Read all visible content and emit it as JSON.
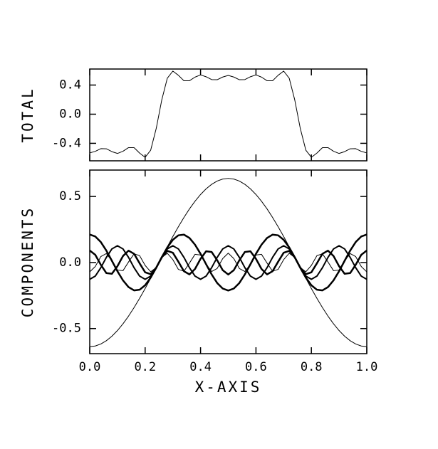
{
  "chart_data": [
    {
      "type": "line",
      "ylabel": "TOTAL",
      "x": [
        0,
        0.02,
        0.04,
        0.06,
        0.08,
        0.1,
        0.12,
        0.14,
        0.16,
        0.18,
        0.2,
        0.22,
        0.24,
        0.26,
        0.28,
        0.3,
        0.32,
        0.34,
        0.36,
        0.38,
        0.4,
        0.42,
        0.44,
        0.46,
        0.48,
        0.5,
        0.52,
        0.54,
        0.56,
        0.58,
        0.6,
        0.62,
        0.64,
        0.66,
        0.68,
        0.7,
        0.72,
        0.74,
        0.76,
        0.78,
        0.8,
        0.82,
        0.84,
        0.86,
        0.88,
        0.9,
        0.92,
        0.94,
        0.96,
        0.98,
        1.0
      ],
      "xlim": [
        0,
        1
      ],
      "xticks": [
        0,
        0.2,
        0.4,
        0.6,
        0.8,
        1
      ],
      "xticklabels": false,
      "ylim": [
        -0.64,
        0.62
      ],
      "yticks": [
        0.4,
        {
          "value": 0,
          "label": "0.0"
        },
        -0.4
      ],
      "series": [
        {
          "color": "#000000",
          "width": 1,
          "values": [
            -0.532,
            -0.51,
            -0.473,
            -0.475,
            -0.514,
            -0.539,
            -0.509,
            -0.459,
            -0.459,
            -0.534,
            -0.592,
            -0.494,
            -0.196,
            0.196,
            0.494,
            0.592,
            0.534,
            0.459,
            0.459,
            0.509,
            0.539,
            0.514,
            0.475,
            0.473,
            0.51,
            0.532,
            0.51,
            0.473,
            0.475,
            0.514,
            0.539,
            0.509,
            0.459,
            0.459,
            0.534,
            0.592,
            0.494,
            0.196,
            -0.196,
            -0.494,
            -0.592,
            -0.534,
            -0.459,
            -0.459,
            -0.509,
            -0.539,
            -0.514,
            -0.475,
            -0.473,
            -0.51,
            -0.532
          ]
        }
      ]
    },
    {
      "type": "line",
      "ylabel": "COMPONENTS",
      "xlabel": "X-AXIS",
      "x": [
        0,
        0.02,
        0.04,
        0.06,
        0.08,
        0.1,
        0.12,
        0.14,
        0.16,
        0.18,
        0.2,
        0.22,
        0.24,
        0.26,
        0.28,
        0.3,
        0.32,
        0.34,
        0.36,
        0.38,
        0.4,
        0.42,
        0.44,
        0.46,
        0.48,
        0.5,
        0.52,
        0.54,
        0.56,
        0.58,
        0.6,
        0.62,
        0.64,
        0.66,
        0.68,
        0.7,
        0.72,
        0.74,
        0.76,
        0.78,
        0.8,
        0.82,
        0.84,
        0.86,
        0.88,
        0.9,
        0.92,
        0.94,
        0.96,
        0.98,
        1.0
      ],
      "xlim": [
        0,
        1
      ],
      "xticks": [
        {
          "value": 0,
          "label": "0.0"
        },
        0.2,
        0.4,
        0.6,
        0.8,
        {
          "value": 1,
          "label": "1.0"
        }
      ],
      "xticklabels": true,
      "ylim": [
        -0.69,
        0.7
      ],
      "yticks": [
        0.5,
        {
          "value": 0,
          "label": "0.0"
        },
        -0.5
      ],
      "series": [
        {
          "color": "#000000",
          "width": 1,
          "values": [
            -0.637,
            -0.632,
            -0.617,
            -0.592,
            -0.558,
            -0.515,
            -0.464,
            -0.406,
            -0.341,
            -0.271,
            -0.197,
            -0.119,
            -0.04,
            0.04,
            0.119,
            0.197,
            0.271,
            0.341,
            0.406,
            0.464,
            0.515,
            0.558,
            0.592,
            0.617,
            0.632,
            0.637,
            0.632,
            0.617,
            0.592,
            0.558,
            0.515,
            0.464,
            0.406,
            0.341,
            0.271,
            0.197,
            0.119,
            0.04,
            -0.04,
            -0.119,
            -0.197,
            -0.271,
            -0.341,
            -0.406,
            -0.464,
            -0.515,
            -0.558,
            -0.592,
            -0.617,
            -0.632,
            -0.637
          ]
        },
        {
          "color": "#000000",
          "width": 2.5,
          "values": [
            0.212,
            0.197,
            0.155,
            0.09,
            0.013,
            -0.066,
            -0.135,
            -0.186,
            -0.211,
            -0.206,
            -0.172,
            -0.114,
            -0.04,
            0.04,
            0.114,
            0.172,
            0.206,
            0.211,
            0.186,
            0.135,
            0.066,
            -0.013,
            -0.09,
            -0.155,
            -0.197,
            -0.212,
            -0.197,
            -0.155,
            -0.09,
            -0.013,
            0.066,
            0.135,
            0.186,
            0.211,
            0.206,
            0.172,
            0.114,
            0.04,
            -0.04,
            -0.114,
            -0.172,
            -0.206,
            -0.211,
            -0.186,
            -0.135,
            -0.066,
            0.013,
            0.09,
            0.155,
            0.197,
            0.212
          ]
        },
        {
          "color": "#000000",
          "width": 2,
          "values": [
            -0.127,
            -0.103,
            -0.039,
            0.039,
            0.103,
            0.127,
            0.103,
            0.039,
            -0.039,
            -0.103,
            -0.127,
            -0.103,
            -0.039,
            0.039,
            0.103,
            0.127,
            0.103,
            0.039,
            -0.039,
            -0.103,
            -0.127,
            -0.103,
            -0.039,
            0.039,
            0.103,
            0.127,
            0.103,
            0.039,
            -0.039,
            -0.103,
            -0.127,
            -0.103,
            -0.039,
            0.039,
            0.103,
            0.127,
            0.103,
            0.039,
            -0.039,
            -0.103,
            -0.127,
            -0.103,
            -0.039,
            0.039,
            0.103,
            0.127,
            0.103,
            0.039,
            -0.039,
            -0.103,
            -0.127
          ]
        },
        {
          "color": "#000000",
          "width": 2.5,
          "values": [
            0.091,
            0.058,
            -0.017,
            -0.08,
            -0.085,
            -0.028,
            0.049,
            0.09,
            0.066,
            -0.006,
            -0.074,
            -0.088,
            -0.039,
            0.039,
            0.088,
            0.074,
            0.006,
            -0.066,
            -0.09,
            -0.049,
            0.028,
            0.085,
            0.08,
            0.017,
            -0.058,
            -0.091,
            -0.058,
            0.017,
            0.08,
            0.085,
            0.028,
            -0.049,
            -0.09,
            -0.066,
            0.006,
            0.074,
            0.088,
            0.039,
            -0.039,
            -0.088,
            -0.074,
            -0.006,
            0.066,
            0.09,
            0.049,
            -0.028,
            -0.085,
            -0.08,
            -0.017,
            0.058,
            0.091
          ]
        },
        {
          "color": "#000000",
          "width": 1,
          "values": [
            -0.071,
            -0.03,
            0.045,
            0.068,
            0.013,
            -0.057,
            -0.062,
            0.004,
            0.066,
            0.052,
            -0.022,
            -0.07,
            -0.038,
            0.038,
            0.07,
            0.022,
            -0.052,
            -0.066,
            -0.004,
            0.062,
            0.057,
            -0.013,
            -0.068,
            -0.045,
            0.03,
            0.071,
            0.03,
            -0.045,
            -0.068,
            -0.013,
            0.057,
            0.062,
            -0.004,
            -0.066,
            -0.052,
            0.022,
            0.07,
            0.038,
            -0.038,
            -0.07,
            -0.022,
            0.052,
            0.066,
            0.004,
            -0.062,
            -0.057,
            0.013,
            0.068,
            0.045,
            -0.03,
            -0.071
          ]
        }
      ]
    }
  ]
}
